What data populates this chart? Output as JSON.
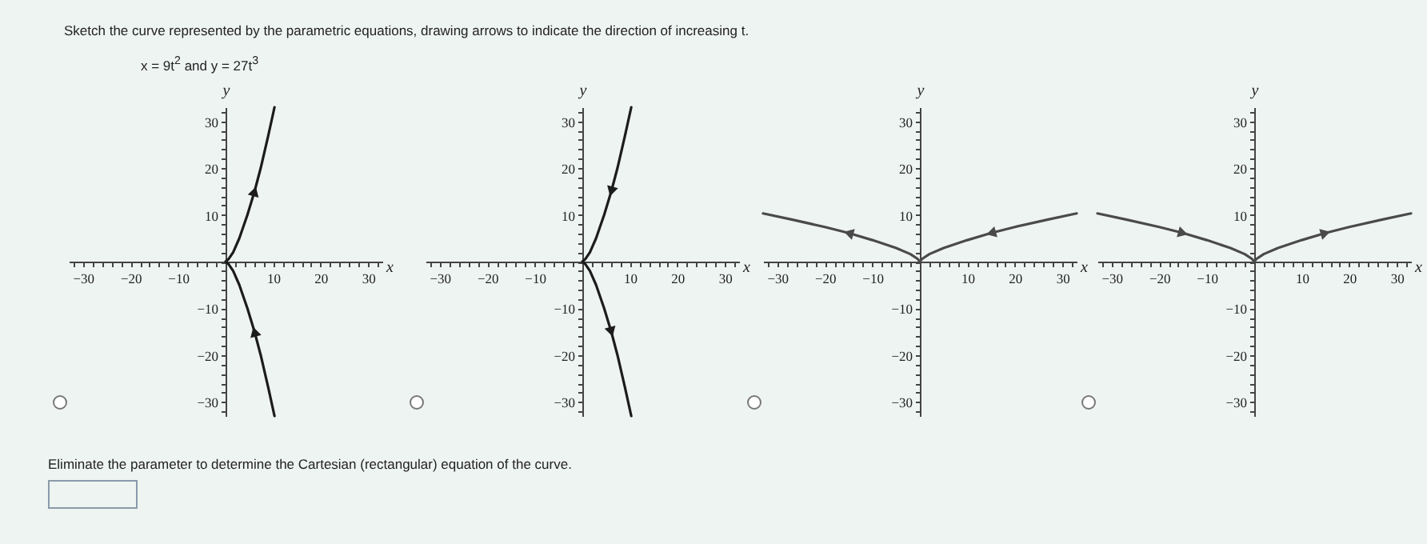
{
  "chart_data": [
    {
      "type": "line",
      "title": "Sketch the curve represented by the parametric equations, drawing arrows to indicate the direction of increasing t.",
      "subtitle": "x = 9t$^{2}$ and y = 27t$^{3}$",
      "xlabel": "x",
      "ylabel": "y",
      "xlim": [
        -33,
        33
      ],
      "ylim": [
        -33,
        33
      ],
      "xticks": [
        {
          "value": -32,
          "label": null
        },
        {
          "value": -30,
          "label": "−30"
        },
        {
          "value": -28,
          "label": null
        },
        {
          "value": -26,
          "label": null
        },
        {
          "value": -24,
          "label": null
        },
        {
          "value": -22,
          "label": null
        },
        {
          "value": -20,
          "label": "−20"
        },
        {
          "value": -18,
          "label": null
        },
        {
          "value": -16,
          "label": null
        },
        {
          "value": -14,
          "label": null
        },
        {
          "value": -12,
          "label": null
        },
        {
          "value": -10,
          "label": "−10"
        },
        {
          "value": -8,
          "label": null
        },
        {
          "value": -6,
          "label": null
        },
        {
          "value": -4,
          "label": null
        },
        {
          "value": -2,
          "label": null
        },
        {
          "value": 0,
          "label": null
        },
        {
          "value": 2,
          "label": null
        },
        {
          "value": 4,
          "label": null
        },
        {
          "value": 6,
          "label": null
        },
        {
          "value": 8,
          "label": null
        },
        10,
        {
          "value": 12,
          "label": null
        },
        {
          "value": 14,
          "label": null
        },
        {
          "value": 16,
          "label": null
        },
        {
          "value": 18,
          "label": null
        },
        20,
        {
          "value": 22,
          "label": null
        },
        {
          "value": 24,
          "label": null
        },
        {
          "value": 26,
          "label": null
        },
        {
          "value": 28,
          "label": null
        },
        30,
        {
          "value": 32,
          "label": null
        }
      ],
      "yticks": [
        {
          "value": -32,
          "label": null
        },
        {
          "value": -30,
          "label": "−30"
        },
        {
          "value": -28,
          "label": null
        },
        {
          "value": -26,
          "label": null
        },
        {
          "value": -24,
          "label": null
        },
        {
          "value": -22,
          "label": null
        },
        {
          "value": -20,
          "label": "−20"
        },
        {
          "value": -18,
          "label": null
        },
        {
          "value": -16,
          "label": null
        },
        {
          "value": -14,
          "label": null
        },
        {
          "value": -12,
          "label": null
        },
        {
          "value": -10,
          "label": "−10"
        },
        {
          "value": -8,
          "label": null
        },
        {
          "value": -6,
          "label": null
        },
        {
          "value": -4,
          "label": null
        },
        {
          "value": -2,
          "label": null
        },
        {
          "value": 0,
          "label": null
        },
        {
          "value": 2,
          "label": null
        },
        {
          "value": 4,
          "label": null
        },
        {
          "value": 6,
          "label": null
        },
        {
          "value": 8,
          "label": null
        },
        10,
        {
          "value": 12,
          "label": null
        },
        {
          "value": 14,
          "label": null
        },
        {
          "value": 16,
          "label": null
        },
        {
          "value": 18,
          "label": null
        },
        20,
        {
          "value": 22,
          "label": null
        },
        {
          "value": 24,
          "label": null
        },
        {
          "value": 26,
          "label": null
        },
        {
          "value": 28,
          "label": null
        },
        30,
        {
          "value": 32,
          "label": null
        }
      ],
      "series": [
        {
          "color": "#1c1c1c",
          "x": [
            10.3,
            9,
            7.4,
            6.1,
            4.6,
            2.9,
            1.6,
            0.6,
            0,
            0.6,
            1.6,
            2.9,
            4.6,
            6.1,
            7.4,
            9,
            10.3
          ],
          "values": [
            -33,
            -27,
            -20,
            -15,
            -10,
            -5,
            -2,
            -0.5,
            0,
            0.5,
            2,
            5,
            10,
            15,
            20,
            27,
            33
          ]
        }
      ]
    },
    {
      "type": "line",
      "xlabel": "x",
      "ylabel": "y",
      "xlim": [
        -33,
        33
      ],
      "ylim": [
        -33,
        33
      ],
      "xticks": [
        {
          "value": -32,
          "label": null
        },
        {
          "value": -30,
          "label": "−30"
        },
        {
          "value": -28,
          "label": null
        },
        {
          "value": -26,
          "label": null
        },
        {
          "value": -24,
          "label": null
        },
        {
          "value": -22,
          "label": null
        },
        {
          "value": -20,
          "label": "−20"
        },
        {
          "value": -18,
          "label": null
        },
        {
          "value": -16,
          "label": null
        },
        {
          "value": -14,
          "label": null
        },
        {
          "value": -12,
          "label": null
        },
        {
          "value": -10,
          "label": "−10"
        },
        {
          "value": -8,
          "label": null
        },
        {
          "value": -6,
          "label": null
        },
        {
          "value": -4,
          "label": null
        },
        {
          "value": -2,
          "label": null
        },
        {
          "value": 0,
          "label": null
        },
        {
          "value": 2,
          "label": null
        },
        {
          "value": 4,
          "label": null
        },
        {
          "value": 6,
          "label": null
        },
        {
          "value": 8,
          "label": null
        },
        10,
        {
          "value": 12,
          "label": null
        },
        {
          "value": 14,
          "label": null
        },
        {
          "value": 16,
          "label": null
        },
        {
          "value": 18,
          "label": null
        },
        20,
        {
          "value": 22,
          "label": null
        },
        {
          "value": 24,
          "label": null
        },
        {
          "value": 26,
          "label": null
        },
        {
          "value": 28,
          "label": null
        },
        30,
        {
          "value": 32,
          "label": null
        }
      ],
      "yticks": [
        {
          "value": -32,
          "label": null
        },
        {
          "value": -30,
          "label": "−30"
        },
        {
          "value": -28,
          "label": null
        },
        {
          "value": -26,
          "label": null
        },
        {
          "value": -24,
          "label": null
        },
        {
          "value": -22,
          "label": null
        },
        {
          "value": -20,
          "label": "−20"
        },
        {
          "value": -18,
          "label": null
        },
        {
          "value": -16,
          "label": null
        },
        {
          "value": -14,
          "label": null
        },
        {
          "value": -12,
          "label": null
        },
        {
          "value": -10,
          "label": "−10"
        },
        {
          "value": -8,
          "label": null
        },
        {
          "value": -6,
          "label": null
        },
        {
          "value": -4,
          "label": null
        },
        {
          "value": -2,
          "label": null
        },
        {
          "value": 0,
          "label": null
        },
        {
          "value": 2,
          "label": null
        },
        {
          "value": 4,
          "label": null
        },
        {
          "value": 6,
          "label": null
        },
        {
          "value": 8,
          "label": null
        },
        10,
        {
          "value": 12,
          "label": null
        },
        {
          "value": 14,
          "label": null
        },
        {
          "value": 16,
          "label": null
        },
        {
          "value": 18,
          "label": null
        },
        20,
        {
          "value": 22,
          "label": null
        },
        {
          "value": 24,
          "label": null
        },
        {
          "value": 26,
          "label": null
        },
        {
          "value": 28,
          "label": null
        },
        30,
        {
          "value": 32,
          "label": null
        }
      ],
      "series": [
        {
          "color": "#1c1c1c",
          "x": [
            10.3,
            9,
            7.4,
            6.1,
            4.6,
            2.9,
            1.6,
            0.6,
            0,
            0.6,
            1.6,
            2.9,
            4.6,
            6.1,
            7.4,
            9,
            10.3
          ],
          "values": [
            33,
            27,
            20,
            15,
            10,
            5,
            2,
            0.5,
            0,
            -0.5,
            -2,
            -5,
            -10,
            -15,
            -20,
            -27,
            -33
          ]
        }
      ]
    },
    {
      "type": "line",
      "xlabel": "x",
      "ylabel": "y",
      "xlim": [
        -33,
        33
      ],
      "ylim": [
        -33,
        33
      ],
      "xticks": [
        {
          "value": -32,
          "label": null
        },
        {
          "value": -30,
          "label": "−30"
        },
        {
          "value": -28,
          "label": null
        },
        {
          "value": -26,
          "label": null
        },
        {
          "value": -24,
          "label": null
        },
        {
          "value": -22,
          "label": null
        },
        {
          "value": -20,
          "label": "−20"
        },
        {
          "value": -18,
          "label": null
        },
        {
          "value": -16,
          "label": null
        },
        {
          "value": -14,
          "label": null
        },
        {
          "value": -12,
          "label": null
        },
        {
          "value": -10,
          "label": "−10"
        },
        {
          "value": -8,
          "label": null
        },
        {
          "value": -6,
          "label": null
        },
        {
          "value": -4,
          "label": null
        },
        {
          "value": -2,
          "label": null
        },
        {
          "value": 0,
          "label": null
        },
        {
          "value": 2,
          "label": null
        },
        {
          "value": 4,
          "label": null
        },
        {
          "value": 6,
          "label": null
        },
        {
          "value": 8,
          "label": null
        },
        10,
        {
          "value": 12,
          "label": null
        },
        {
          "value": 14,
          "label": null
        },
        {
          "value": 16,
          "label": null
        },
        {
          "value": 18,
          "label": null
        },
        20,
        {
          "value": 22,
          "label": null
        },
        {
          "value": 24,
          "label": null
        },
        {
          "value": 26,
          "label": null
        },
        {
          "value": 28,
          "label": null
        },
        30,
        {
          "value": 32,
          "label": null
        }
      ],
      "yticks": [
        {
          "value": -32,
          "label": null
        },
        {
          "value": -30,
          "label": "−30"
        },
        {
          "value": -28,
          "label": null
        },
        {
          "value": -26,
          "label": null
        },
        {
          "value": -24,
          "label": null
        },
        {
          "value": -22,
          "label": null
        },
        {
          "value": -20,
          "label": "−20"
        },
        {
          "value": -18,
          "label": null
        },
        {
          "value": -16,
          "label": null
        },
        {
          "value": -14,
          "label": null
        },
        {
          "value": -12,
          "label": null
        },
        {
          "value": -10,
          "label": "−10"
        },
        {
          "value": -8,
          "label": null
        },
        {
          "value": -6,
          "label": null
        },
        {
          "value": -4,
          "label": null
        },
        {
          "value": -2,
          "label": null
        },
        {
          "value": 0,
          "label": null
        },
        {
          "value": 2,
          "label": null
        },
        {
          "value": 4,
          "label": null
        },
        {
          "value": 6,
          "label": null
        },
        {
          "value": 8,
          "label": null
        },
        10,
        {
          "value": 12,
          "label": null
        },
        {
          "value": 14,
          "label": null
        },
        {
          "value": 16,
          "label": null
        },
        {
          "value": 18,
          "label": null
        },
        20,
        {
          "value": 22,
          "label": null
        },
        {
          "value": 24,
          "label": null
        },
        {
          "value": 26,
          "label": null
        },
        {
          "value": 28,
          "label": null
        },
        30,
        {
          "value": 32,
          "label": null
        }
      ],
      "series": [
        {
          "color": "#4a4a4a",
          "x": [
            33,
            27,
            20,
            15,
            10,
            5,
            2,
            0.5,
            0,
            -0.5,
            -2,
            -5,
            -10,
            -15,
            -20,
            -27,
            -33
          ],
          "values": [
            10.3,
            9,
            7.4,
            6.1,
            4.6,
            2.9,
            1.6,
            0.6,
            0,
            0.6,
            1.6,
            2.9,
            4.6,
            6.1,
            7.4,
            9,
            10.3
          ]
        }
      ]
    },
    {
      "type": "line",
      "xlabel": "x",
      "ylabel": "y",
      "xlim": [
        -33,
        33
      ],
      "ylim": [
        -33,
        33
      ],
      "xticks": [
        {
          "value": -32,
          "label": null
        },
        {
          "value": -30,
          "label": "−30"
        },
        {
          "value": -28,
          "label": null
        },
        {
          "value": -26,
          "label": null
        },
        {
          "value": -24,
          "label": null
        },
        {
          "value": -22,
          "label": null
        },
        {
          "value": -20,
          "label": "−20"
        },
        {
          "value": -18,
          "label": null
        },
        {
          "value": -16,
          "label": null
        },
        {
          "value": -14,
          "label": null
        },
        {
          "value": -12,
          "label": null
        },
        {
          "value": -10,
          "label": "−10"
        },
        {
          "value": -8,
          "label": null
        },
        {
          "value": -6,
          "label": null
        },
        {
          "value": -4,
          "label": null
        },
        {
          "value": -2,
          "label": null
        },
        {
          "value": 0,
          "label": null
        },
        {
          "value": 2,
          "label": null
        },
        {
          "value": 4,
          "label": null
        },
        {
          "value": 6,
          "label": null
        },
        {
          "value": 8,
          "label": null
        },
        10,
        {
          "value": 12,
          "label": null
        },
        {
          "value": 14,
          "label": null
        },
        {
          "value": 16,
          "label": null
        },
        {
          "value": 18,
          "label": null
        },
        20,
        {
          "value": 22,
          "label": null
        },
        {
          "value": 24,
          "label": null
        },
        {
          "value": 26,
          "label": null
        },
        {
          "value": 28,
          "label": null
        },
        30,
        {
          "value": 32,
          "label": null
        }
      ],
      "yticks": [
        {
          "value": -32,
          "label": null
        },
        {
          "value": -30,
          "label": "−30"
        },
        {
          "value": -28,
          "label": null
        },
        {
          "value": -26,
          "label": null
        },
        {
          "value": -24,
          "label": null
        },
        {
          "value": -22,
          "label": null
        },
        {
          "value": -20,
          "label": "−20"
        },
        {
          "value": -18,
          "label": null
        },
        {
          "value": -16,
          "label": null
        },
        {
          "value": -14,
          "label": null
        },
        {
          "value": -12,
          "label": null
        },
        {
          "value": -10,
          "label": "−10"
        },
        {
          "value": -8,
          "label": null
        },
        {
          "value": -6,
          "label": null
        },
        {
          "value": -4,
          "label": null
        },
        {
          "value": -2,
          "label": null
        },
        {
          "value": 0,
          "label": null
        },
        {
          "value": 2,
          "label": null
        },
        {
          "value": 4,
          "label": null
        },
        {
          "value": 6,
          "label": null
        },
        {
          "value": 8,
          "label": null
        },
        10,
        {
          "value": 12,
          "label": null
        },
        {
          "value": 14,
          "label": null
        },
        {
          "value": 16,
          "label": null
        },
        {
          "value": 18,
          "label": null
        },
        20,
        {
          "value": 22,
          "label": null
        },
        {
          "value": 24,
          "label": null
        },
        {
          "value": 26,
          "label": null
        },
        {
          "value": 28,
          "label": null
        },
        30,
        {
          "value": 32,
          "label": null
        }
      ],
      "series": [
        {
          "color": "#4a4a4a",
          "x": [
            -33,
            -27,
            -20,
            -15,
            -10,
            -5,
            -2,
            -0.5,
            0,
            0.5,
            2,
            5,
            10,
            15,
            20,
            27,
            33
          ],
          "values": [
            10.3,
            9,
            7.4,
            6.1,
            4.6,
            2.9,
            1.6,
            0.6,
            0,
            0.6,
            1.6,
            2.9,
            4.6,
            6.1,
            7.4,
            9,
            10.3
          ]
        }
      ],
      "annotations": [
        "Eliminate the parameter to determine the Cartesian (rectangular) equation of the curve."
      ]
    }
  ]
}
